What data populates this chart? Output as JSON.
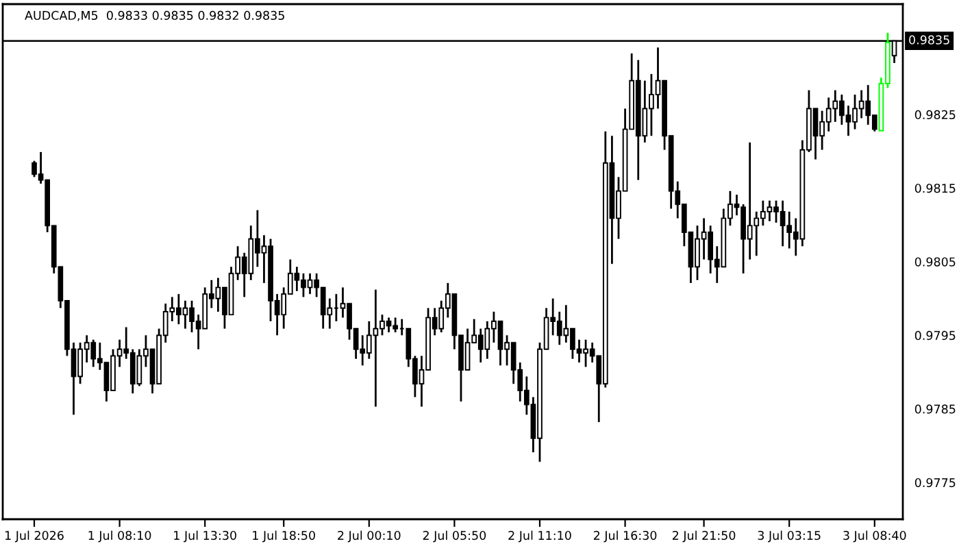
{
  "chart_data": {
    "type": "candlestick",
    "title": "AUDCAD,M5  0.9833 0.9835 0.9832 0.9835",
    "categories": [
      "1 Jul 2026",
      null,
      null,
      null,
      null,
      null,
      null,
      null,
      null,
      null,
      null,
      null,
      null,
      "1 Jul 08:10",
      null,
      null,
      null,
      null,
      null,
      null,
      null,
      null,
      null,
      null,
      null,
      null,
      "1 Jul 13:30",
      null,
      null,
      null,
      null,
      null,
      null,
      null,
      null,
      null,
      null,
      null,
      "1 Jul 18:50",
      null,
      null,
      null,
      null,
      null,
      null,
      null,
      null,
      null,
      null,
      null,
      null,
      "2 Jul 00:10",
      null,
      null,
      null,
      null,
      null,
      null,
      null,
      null,
      null,
      null,
      null,
      null,
      "2 Jul 05:50",
      null,
      null,
      null,
      null,
      null,
      null,
      null,
      null,
      null,
      null,
      null,
      null,
      "2 Jul 11:10",
      null,
      null,
      null,
      null,
      null,
      null,
      null,
      null,
      null,
      null,
      null,
      null,
      "2 Jul 16:30",
      null,
      null,
      null,
      null,
      null,
      null,
      null,
      null,
      null,
      null,
      null,
      "2 Jul 21:50",
      null,
      null,
      null,
      null,
      null,
      null,
      null,
      null,
      null,
      null,
      null,
      null,
      "3 Jul 03:15",
      null,
      null,
      null,
      null,
      null,
      null,
      null,
      null,
      null,
      null,
      null,
      null,
      "3 Jul 08:40",
      null,
      null,
      null
    ],
    "ohlc": [
      [
        0.98184,
        0.98187,
        0.98165,
        0.98169
      ],
      [
        0.98169,
        0.98199,
        0.98156,
        0.98161
      ],
      [
        0.98161,
        0.98161,
        0.9809,
        0.98099
      ],
      [
        0.98099,
        0.98099,
        0.98034,
        0.98043
      ],
      [
        0.98043,
        0.98043,
        0.97987,
        0.97997
      ],
      [
        0.97997,
        0.97997,
        0.97922,
        0.97931
      ],
      [
        0.97931,
        0.9794,
        0.97842,
        0.97894
      ],
      [
        0.97894,
        0.9794,
        0.97884,
        0.97931
      ],
      [
        0.97931,
        0.9795,
        0.97913,
        0.9794
      ],
      [
        0.9794,
        0.97944,
        0.97907,
        0.97918
      ],
      [
        0.97918,
        0.9794,
        0.97903,
        0.97913
      ],
      [
        0.97913,
        0.97913,
        0.9786,
        0.97875
      ],
      [
        0.97875,
        0.97931,
        0.97875,
        0.97922
      ],
      [
        0.97922,
        0.97944,
        0.97907,
        0.97931
      ],
      [
        0.97931,
        0.97961,
        0.97918,
        0.97926
      ],
      [
        0.97926,
        0.97931,
        0.97871,
        0.97884
      ],
      [
        0.97884,
        0.97931,
        0.97881,
        0.97922
      ],
      [
        0.97922,
        0.9795,
        0.97907,
        0.97931
      ],
      [
        0.97931,
        0.97931,
        0.97871,
        0.97884
      ],
      [
        0.97884,
        0.97959,
        0.97884,
        0.9795
      ],
      [
        0.9795,
        0.97993,
        0.9794,
        0.97982
      ],
      [
        0.97982,
        0.98002,
        0.97969,
        0.97987
      ],
      [
        0.97987,
        0.98006,
        0.97965,
        0.97978
      ],
      [
        0.97978,
        0.97997,
        0.97959,
        0.97987
      ],
      [
        0.97987,
        0.97997,
        0.97954,
        0.97969
      ],
      [
        0.97969,
        0.97978,
        0.97931,
        0.97959
      ],
      [
        0.97959,
        0.98015,
        0.97959,
        0.98006
      ],
      [
        0.98006,
        0.98025,
        0.97987,
        0.98
      ],
      [
        0.98,
        0.98028,
        0.97982,
        0.98015
      ],
      [
        0.98015,
        0.98015,
        0.97959,
        0.97978
      ],
      [
        0.97978,
        0.98043,
        0.97978,
        0.98034
      ],
      [
        0.98034,
        0.98071,
        0.98025,
        0.98056
      ],
      [
        0.98056,
        0.98062,
        0.98002,
        0.98034
      ],
      [
        0.98034,
        0.98099,
        0.98025,
        0.98081
      ],
      [
        0.98081,
        0.9812,
        0.98043,
        0.98062
      ],
      [
        0.98062,
        0.98086,
        0.98021,
        0.98071
      ],
      [
        0.98071,
        0.98081,
        0.97969,
        0.97997
      ],
      [
        0.97997,
        0.98006,
        0.9795,
        0.97978
      ],
      [
        0.97978,
        0.98015,
        0.97959,
        0.98006
      ],
      [
        0.98006,
        0.98053,
        0.98006,
        0.98034
      ],
      [
        0.98034,
        0.98043,
        0.9801,
        0.98025
      ],
      [
        0.98025,
        0.98034,
        0.98002,
        0.98015
      ],
      [
        0.98015,
        0.98034,
        0.98006,
        0.98025
      ],
      [
        0.98025,
        0.98034,
        0.98002,
        0.98015
      ],
      [
        0.98015,
        0.98015,
        0.97959,
        0.97978
      ],
      [
        0.97978,
        0.98,
        0.97959,
        0.97987
      ],
      [
        0.97987,
        0.98006,
        0.97969,
        0.97987
      ],
      [
        0.97987,
        0.98015,
        0.97974,
        0.97993
      ],
      [
        0.97993,
        0.97993,
        0.97944,
        0.97959
      ],
      [
        0.97959,
        0.97959,
        0.97918,
        0.97931
      ],
      [
        0.97931,
        0.9795,
        0.97909,
        0.97926
      ],
      [
        0.97926,
        0.97969,
        0.97918,
        0.9795
      ],
      [
        0.9795,
        0.98012,
        0.97853,
        0.97959
      ],
      [
        0.97959,
        0.97978,
        0.9795,
        0.97969
      ],
      [
        0.97969,
        0.97974,
        0.97954,
        0.97963
      ],
      [
        0.97963,
        0.97974,
        0.97954,
        0.97959
      ],
      [
        0.97959,
        0.97972,
        0.9795,
        0.97959
      ],
      [
        0.97959,
        0.97959,
        0.97907,
        0.97918
      ],
      [
        0.97918,
        0.97922,
        0.97866,
        0.97884
      ],
      [
        0.97884,
        0.97922,
        0.97853,
        0.97903
      ],
      [
        0.97903,
        0.97987,
        0.97903,
        0.97974
      ],
      [
        0.97974,
        0.97987,
        0.9795,
        0.97959
      ],
      [
        0.97959,
        0.97997,
        0.97954,
        0.97987
      ],
      [
        0.97987,
        0.98021,
        0.97974,
        0.98006
      ],
      [
        0.98006,
        0.98006,
        0.97931,
        0.9795
      ],
      [
        0.9795,
        0.9795,
        0.9786,
        0.97903
      ],
      [
        0.97903,
        0.97959,
        0.97903,
        0.9794
      ],
      [
        0.9794,
        0.97972,
        0.9794,
        0.9795
      ],
      [
        0.9795,
        0.97959,
        0.97913,
        0.97931
      ],
      [
        0.97931,
        0.97969,
        0.97918,
        0.97959
      ],
      [
        0.97959,
        0.97982,
        0.9794,
        0.97969
      ],
      [
        0.97969,
        0.97969,
        0.97909,
        0.97931
      ],
      [
        0.97931,
        0.9795,
        0.97909,
        0.9794
      ],
      [
        0.9794,
        0.9794,
        0.97884,
        0.97903
      ],
      [
        0.97903,
        0.97913,
        0.9786,
        0.97875
      ],
      [
        0.97875,
        0.97894,
        0.97842,
        0.97856
      ],
      [
        0.97856,
        0.97866,
        0.97791,
        0.9781
      ],
      [
        0.9781,
        0.9794,
        0.97778,
        0.97931
      ],
      [
        0.97931,
        0.97987,
        0.97931,
        0.97974
      ],
      [
        0.97974,
        0.98,
        0.9795,
        0.97969
      ],
      [
        0.97969,
        0.97982,
        0.97937,
        0.9795
      ],
      [
        0.9795,
        0.97991,
        0.9794,
        0.97959
      ],
      [
        0.97959,
        0.97959,
        0.97918,
        0.97931
      ],
      [
        0.97931,
        0.97944,
        0.97913,
        0.97926
      ],
      [
        0.97926,
        0.97944,
        0.97907,
        0.97931
      ],
      [
        0.97931,
        0.9794,
        0.97913,
        0.97922
      ],
      [
        0.97922,
        0.97922,
        0.97832,
        0.97884
      ],
      [
        0.97884,
        0.98227,
        0.97879,
        0.98184
      ],
      [
        0.98184,
        0.98221,
        0.98047,
        0.98109
      ],
      [
        0.98109,
        0.98165,
        0.98081,
        0.98146
      ],
      [
        0.98146,
        0.98258,
        0.98146,
        0.9823
      ],
      [
        0.9823,
        0.98333,
        0.9823,
        0.98296
      ],
      [
        0.98296,
        0.98324,
        0.98161,
        0.98221
      ],
      [
        0.98221,
        0.98296,
        0.98212,
        0.98258
      ],
      [
        0.98258,
        0.98305,
        0.98221,
        0.98277
      ],
      [
        0.98277,
        0.98341,
        0.98258,
        0.98296
      ],
      [
        0.98296,
        0.98296,
        0.98202,
        0.98221
      ],
      [
        0.98221,
        0.98221,
        0.98122,
        0.98146
      ],
      [
        0.98146,
        0.98159,
        0.98109,
        0.98128
      ],
      [
        0.98128,
        0.98128,
        0.98071,
        0.9809
      ],
      [
        0.9809,
        0.9809,
        0.98021,
        0.98043
      ],
      [
        0.98043,
        0.98099,
        0.98025,
        0.98081
      ],
      [
        0.98081,
        0.98109,
        0.98053,
        0.9809
      ],
      [
        0.9809,
        0.98099,
        0.98034,
        0.98053
      ],
      [
        0.98053,
        0.98071,
        0.98021,
        0.98043
      ],
      [
        0.98043,
        0.98122,
        0.98043,
        0.98109
      ],
      [
        0.98109,
        0.98146,
        0.98099,
        0.98128
      ],
      [
        0.98128,
        0.98141,
        0.98113,
        0.98124
      ],
      [
        0.98124,
        0.98128,
        0.98034,
        0.98081
      ],
      [
        0.98081,
        0.98212,
        0.98053,
        0.98099
      ],
      [
        0.98099,
        0.98118,
        0.98058,
        0.98109
      ],
      [
        0.98109,
        0.98133,
        0.98099,
        0.98118
      ],
      [
        0.98118,
        0.98133,
        0.98105,
        0.98124
      ],
      [
        0.98124,
        0.98133,
        0.98103,
        0.98118
      ],
      [
        0.98118,
        0.98133,
        0.98071,
        0.98099
      ],
      [
        0.98099,
        0.98118,
        0.98068,
        0.9809
      ],
      [
        0.9809,
        0.98109,
        0.98058,
        0.98081
      ],
      [
        0.98081,
        0.98215,
        0.98071,
        0.98202
      ],
      [
        0.98202,
        0.98283,
        0.98199,
        0.98258
      ],
      [
        0.98258,
        0.98258,
        0.98189,
        0.98221
      ],
      [
        0.98221,
        0.98255,
        0.98202,
        0.9824
      ],
      [
        0.9824,
        0.98273,
        0.98227,
        0.98258
      ],
      [
        0.98258,
        0.98283,
        0.9824,
        0.98268
      ],
      [
        0.98268,
        0.98277,
        0.98236,
        0.98249
      ],
      [
        0.98249,
        0.98262,
        0.98221,
        0.9824
      ],
      [
        0.9824,
        0.98277,
        0.9823,
        0.98258
      ],
      [
        0.98258,
        0.98283,
        0.98245,
        0.98268
      ],
      [
        0.98268,
        0.9829,
        0.98236,
        0.98249
      ],
      [
        0.98249,
        0.98249,
        0.98227,
        0.9823
      ],
      [
        0.98228,
        0.983,
        0.98228,
        0.98292
      ],
      [
        0.98292,
        0.98361,
        0.98286,
        0.98348
      ],
      [
        0.9833,
        0.9835,
        0.9832,
        0.9835
      ]
    ],
    "colors": [
      "#000000",
      "#000000",
      "#000000",
      "#000000",
      "#000000",
      "#000000",
      "#000000",
      "#000000",
      "#000000",
      "#000000",
      "#000000",
      "#000000",
      "#000000",
      "#000000",
      "#000000",
      "#000000",
      "#000000",
      "#000000",
      "#000000",
      "#000000",
      "#000000",
      "#000000",
      "#000000",
      "#000000",
      "#000000",
      "#000000",
      "#000000",
      "#000000",
      "#000000",
      "#000000",
      "#000000",
      "#000000",
      "#000000",
      "#000000",
      "#000000",
      "#000000",
      "#000000",
      "#000000",
      "#000000",
      "#000000",
      "#000000",
      "#000000",
      "#000000",
      "#000000",
      "#000000",
      "#000000",
      "#000000",
      "#000000",
      "#000000",
      "#000000",
      "#000000",
      "#000000",
      "#000000",
      "#000000",
      "#000000",
      "#000000",
      "#000000",
      "#000000",
      "#000000",
      "#000000",
      "#000000",
      "#000000",
      "#000000",
      "#000000",
      "#000000",
      "#000000",
      "#000000",
      "#000000",
      "#000000",
      "#000000",
      "#000000",
      "#000000",
      "#000000",
      "#000000",
      "#000000",
      "#000000",
      "#000000",
      "#000000",
      "#000000",
      "#000000",
      "#000000",
      "#000000",
      "#000000",
      "#000000",
      "#000000",
      "#000000",
      "#000000",
      "#000000",
      "#000000",
      "#000000",
      "#000000",
      "#000000",
      "#000000",
      "#000000",
      "#000000",
      "#000000",
      "#000000",
      "#000000",
      "#000000",
      "#000000",
      "#000000",
      "#000000",
      "#000000",
      "#000000",
      "#000000",
      "#000000",
      "#000000",
      "#000000",
      "#000000",
      "#000000",
      "#000000",
      "#000000",
      "#000000",
      "#000000",
      "#000000",
      "#000000",
      "#000000",
      "#000000",
      "#000000",
      "#000000",
      "#000000",
      "#000000",
      "#000000",
      "#000000",
      "#000000",
      "#000000",
      "#000000",
      "#000000",
      "#000000",
      "#00ff00",
      "#00ff00",
      "#000000"
    ],
    "ylim": [
      0.977,
      0.984
    ],
    "yticks": [
      0.9775,
      0.9785,
      0.9795,
      0.9805,
      0.9815,
      0.9825
    ],
    "ref_lines": [
      {
        "axis": "y",
        "value": 0.9835,
        "label": "0.9835",
        "color": "#000000"
      }
    ]
  }
}
